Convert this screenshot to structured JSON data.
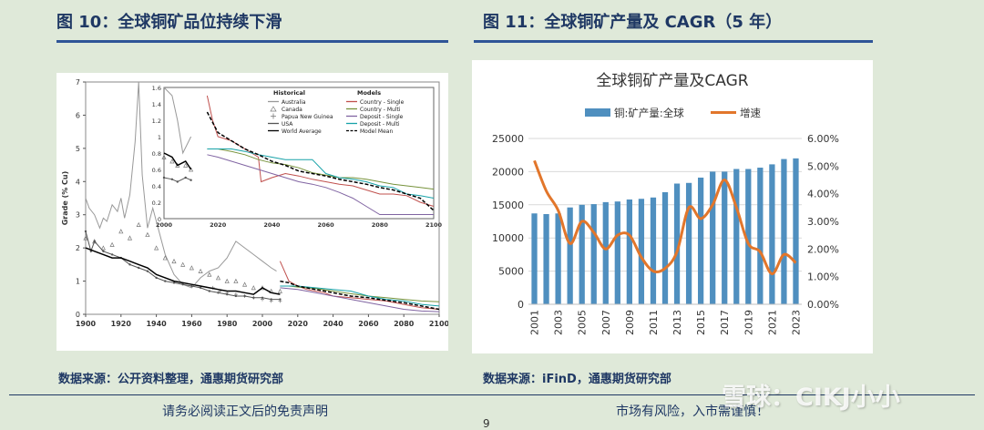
{
  "left": {
    "figure_title": "图 10：全球铜矿品位持续下滑",
    "source": "数据来源：公开资料整理，通惠期货研究部"
  },
  "right": {
    "figure_title": "图 11：全球铜矿产量及 CAGR（5 年）",
    "source": "数据来源：iFinD，通惠期货研究部"
  },
  "footer": {
    "disclaimer": "请务必阅读正文后的免责声明",
    "risk": "市场有风险，入市需谨慎！",
    "page_number": "9",
    "watermark": "雪球：CIKJ小小"
  },
  "chart_data": [
    {
      "type": "line",
      "title": "",
      "xlabel": "",
      "ylabel": "Grade (% Cu)",
      "xlim": [
        1900,
        2100
      ],
      "ylim": [
        0,
        7
      ],
      "x_ticks": [
        "1900",
        "1920",
        "1940",
        "1960",
        "1980",
        "2000",
        "2020",
        "2040",
        "2060",
        "2080",
        "2100"
      ],
      "y_ticks": [
        "0",
        "1",
        "2",
        "3",
        "4",
        "5",
        "6",
        "7"
      ],
      "legend": {
        "historical_title": "Historical",
        "models_title": "Models",
        "items": [
          {
            "name": "Australia",
            "style": "line",
            "color": "#999999"
          },
          {
            "name": "Canada",
            "style": "triangle",
            "color": "#777777"
          },
          {
            "name": "Papua New Guinea",
            "style": "plus",
            "color": "#777777"
          },
          {
            "name": "USA",
            "style": "line-dot",
            "color": "#555555"
          },
          {
            "name": "World Average",
            "style": "line",
            "color": "#000000"
          },
          {
            "name": "Country - Single",
            "style": "line",
            "color": "#c0504d"
          },
          {
            "name": "Country - Multi",
            "style": "line",
            "color": "#77933c"
          },
          {
            "name": "Deposit - Single",
            "style": "line",
            "color": "#8064a2"
          },
          {
            "name": "Deposit - Multi",
            "style": "line",
            "color": "#17a2a8"
          },
          {
            "name": "Model Mean",
            "style": "dashed",
            "color": "#000000"
          }
        ]
      },
      "series": [
        {
          "name": "Australia",
          "x": [
            1900,
            1902,
            1905,
            1908,
            1910,
            1912,
            1915,
            1918,
            1920,
            1922,
            1925,
            1928,
            1930,
            1932,
            1935,
            1938,
            1940,
            1945,
            1950,
            1955,
            1960,
            1965,
            1970,
            1975,
            1980,
            1985,
            1990,
            1995,
            2000,
            2005,
            2008
          ],
          "y": [
            3.5,
            3.2,
            3.0,
            2.6,
            2.9,
            2.8,
            3.3,
            3.1,
            3.5,
            2.9,
            3.6,
            5.2,
            7.0,
            4.2,
            2.6,
            3.2,
            2.8,
            1.8,
            1.2,
            0.9,
            0.8,
            1.1,
            1.3,
            1.4,
            1.7,
            2.2,
            2.0,
            1.8,
            1.6,
            1.4,
            1.3
          ]
        },
        {
          "name": "Canada",
          "x": [
            1900,
            1905,
            1910,
            1915,
            1920,
            1925,
            1930,
            1935,
            1940,
            1945,
            1950,
            1955,
            1960,
            1965,
            1970,
            1975,
            1980,
            1985,
            1990,
            1995,
            2000,
            2005,
            2010
          ],
          "y": [
            2.3,
            2.2,
            2.0,
            2.1,
            2.5,
            2.3,
            2.7,
            2.4,
            2.0,
            1.7,
            1.6,
            1.5,
            1.4,
            1.3,
            1.2,
            1.1,
            1.0,
            1.0,
            0.9,
            0.8,
            0.8,
            0.7,
            0.7
          ]
        },
        {
          "name": "Papua New Guinea",
          "x": [
            1972,
            1976,
            1980,
            1985,
            1990,
            1995,
            2000,
            2005,
            2010
          ],
          "y": [
            0.8,
            0.7,
            0.65,
            0.6,
            0.55,
            0.5,
            0.45,
            0.4,
            0.4
          ]
        },
        {
          "name": "USA",
          "x": [
            1900,
            1903,
            1905,
            1910,
            1915,
            1920,
            1925,
            1930,
            1935,
            1940,
            1945,
            1950,
            1955,
            1960,
            1965,
            1970,
            1975,
            1980,
            1985,
            1990,
            1995,
            2000,
            2005,
            2010
          ],
          "y": [
            2.5,
            1.9,
            2.2,
            1.9,
            1.8,
            1.7,
            1.5,
            1.4,
            1.3,
            1.1,
            1.0,
            0.95,
            0.9,
            0.85,
            0.8,
            0.7,
            0.65,
            0.6,
            0.55,
            0.55,
            0.5,
            0.5,
            0.45,
            0.45
          ]
        },
        {
          "name": "World Average",
          "x": [
            1900,
            1905,
            1910,
            1915,
            1920,
            1925,
            1930,
            1935,
            1940,
            1945,
            1950,
            1955,
            1960,
            1965,
            1970,
            1975,
            1980,
            1985,
            1990,
            1995,
            2000,
            2005,
            2010
          ],
          "y": [
            2.0,
            1.9,
            1.8,
            1.7,
            1.7,
            1.6,
            1.5,
            1.4,
            1.2,
            1.1,
            1.0,
            0.95,
            0.9,
            0.85,
            0.8,
            0.75,
            0.7,
            0.7,
            0.65,
            0.6,
            0.8,
            0.65,
            0.6
          ]
        },
        {
          "name": "Country - Single",
          "x": [
            2010,
            2015,
            2020,
            2025,
            2030,
            2035,
            2040,
            2050,
            2060,
            2070,
            2080,
            2090,
            2100
          ],
          "y": [
            1.6,
            1.0,
            0.85,
            0.75,
            0.7,
            0.65,
            0.55,
            0.5,
            0.45,
            0.4,
            0.3,
            0.2,
            0.15
          ]
        },
        {
          "name": "Country - Multi",
          "x": [
            2010,
            2015,
            2020,
            2030,
            2040,
            2050,
            2060,
            2070,
            2080,
            2090,
            2100
          ],
          "y": [
            0.85,
            0.85,
            0.82,
            0.78,
            0.7,
            0.62,
            0.55,
            0.5,
            0.45,
            0.4,
            0.38
          ]
        },
        {
          "name": "Deposit - Single",
          "x": [
            2010,
            2020,
            2030,
            2040,
            2050,
            2060,
            2070,
            2080,
            2090,
            2100
          ],
          "y": [
            0.8,
            0.75,
            0.65,
            0.55,
            0.45,
            0.35,
            0.25,
            0.15,
            0.1,
            0.08
          ]
        },
        {
          "name": "Deposit - Multi",
          "x": [
            2010,
            2020,
            2030,
            2040,
            2050,
            2060,
            2070,
            2080,
            2090,
            2100
          ],
          "y": [
            0.85,
            0.85,
            0.8,
            0.75,
            0.7,
            0.55,
            0.45,
            0.4,
            0.3,
            0.25
          ]
        },
        {
          "name": "Model Mean",
          "x": [
            2010,
            2015,
            2020,
            2030,
            2040,
            2050,
            2060,
            2070,
            2080,
            2090,
            2100
          ],
          "y": [
            1.0,
            0.95,
            0.85,
            0.75,
            0.65,
            0.55,
            0.5,
            0.42,
            0.35,
            0.25,
            0.15
          ]
        }
      ],
      "inset": {
        "xlim": [
          2000,
          2100
        ],
        "ylim": [
          0,
          1.6
        ],
        "x_ticks": [
          "2000",
          "2020",
          "2040",
          "2060",
          "2080",
          "2100"
        ],
        "y_ticks": [
          "0",
          "0.2",
          "0.4",
          "0.6",
          "0.8",
          "1",
          "1.2",
          "1.4",
          "1.6"
        ],
        "series": [
          {
            "name": "Country - Single",
            "x": [
              2016,
              2018,
              2020,
              2025,
              2030,
              2035,
              2036,
              2040,
              2045,
              2050,
              2055,
              2060,
              2065,
              2070,
              2075,
              2080,
              2085,
              2090,
              2095,
              2100
            ],
            "y": [
              1.5,
              1.2,
              1.0,
              0.95,
              0.85,
              0.75,
              0.45,
              0.5,
              0.55,
              0.52,
              0.48,
              0.45,
              0.42,
              0.4,
              0.35,
              0.3,
              0.3,
              0.28,
              0.2,
              0.15
            ]
          },
          {
            "name": "Country - Multi",
            "x": [
              2016,
              2020,
              2025,
              2030,
              2035,
              2040,
              2045,
              2050,
              2055,
              2060,
              2065,
              2070,
              2075,
              2080,
              2085,
              2090,
              2095,
              2100
            ],
            "y": [
              0.85,
              0.85,
              0.82,
              0.78,
              0.72,
              0.68,
              0.66,
              0.62,
              0.56,
              0.53,
              0.5,
              0.5,
              0.48,
              0.45,
              0.42,
              0.4,
              0.38,
              0.36
            ]
          },
          {
            "name": "Deposit - Single",
            "x": [
              2016,
              2020,
              2025,
              2030,
              2035,
              2040,
              2045,
              2050,
              2055,
              2060,
              2065,
              2070,
              2075,
              2080,
              2085,
              2090,
              2095,
              2100
            ],
            "y": [
              0.78,
              0.75,
              0.7,
              0.65,
              0.6,
              0.55,
              0.5,
              0.45,
              0.42,
              0.38,
              0.32,
              0.25,
              0.15,
              0.05,
              0.05,
              0.05,
              0.05,
              0.05
            ]
          },
          {
            "name": "Deposit - Multi",
            "x": [
              2016,
              2020,
              2025,
              2030,
              2035,
              2040,
              2045,
              2050,
              2055,
              2060,
              2065,
              2070,
              2075,
              2080,
              2085,
              2090,
              2095,
              2100
            ],
            "y": [
              0.85,
              0.85,
              0.85,
              0.82,
              0.78,
              0.75,
              0.72,
              0.72,
              0.72,
              0.55,
              0.5,
              0.48,
              0.45,
              0.4,
              0.38,
              0.3,
              0.28,
              0.25
            ]
          },
          {
            "name": "Model Mean",
            "x": [
              2016,
              2020,
              2025,
              2030,
              2035,
              2040,
              2045,
              2050,
              2055,
              2060,
              2065,
              2070,
              2075,
              2080,
              2085,
              2090,
              2095,
              2100
            ],
            "y": [
              1.3,
              1.05,
              0.95,
              0.85,
              0.78,
              0.7,
              0.65,
              0.58,
              0.55,
              0.52,
              0.48,
              0.45,
              0.42,
              0.38,
              0.35,
              0.3,
              0.25,
              0.1
            ]
          },
          {
            "name": "Australia",
            "x": [
              2000,
              2003,
              2005,
              2007,
              2010
            ],
            "y": [
              1.6,
              1.5,
              1.2,
              0.8,
              1.0
            ]
          },
          {
            "name": "Canada",
            "x": [
              2000,
              2003,
              2005,
              2008,
              2010
            ],
            "y": [
              0.75,
              0.7,
              0.65,
              0.65,
              0.6
            ]
          },
          {
            "name": "World Average",
            "x": [
              2000,
              2003,
              2005,
              2008,
              2010
            ],
            "y": [
              0.8,
              0.75,
              0.65,
              0.7,
              0.6
            ]
          },
          {
            "name": "USA",
            "x": [
              2000,
              2003,
              2005,
              2008,
              2010
            ],
            "y": [
              0.5,
              0.48,
              0.45,
              0.5,
              0.47
            ]
          }
        ]
      }
    },
    {
      "type": "bar",
      "title": "全球铜矿产量及CAGR",
      "legend_position": "top",
      "categories": [
        "2001",
        "2002",
        "2003",
        "2004",
        "2005",
        "2006",
        "2007",
        "2008",
        "2009",
        "2010",
        "2011",
        "2012",
        "2013",
        "2014",
        "2015",
        "2016",
        "2017",
        "2018",
        "2019",
        "2020",
        "2021",
        "2022",
        "2023"
      ],
      "x_tick_labels": [
        "2001",
        "2003",
        "2005",
        "2007",
        "2009",
        "2011",
        "2013",
        "2015",
        "2017",
        "2019",
        "2021",
        "2023"
      ],
      "y_left_ticks": [
        "0",
        "5000",
        "10000",
        "15000",
        "20000",
        "25000"
      ],
      "y_right_ticks": [
        "0.00%",
        "1.00%",
        "2.00%",
        "3.00%",
        "4.00%",
        "5.00%",
        "6.00%"
      ],
      "ylim_left": [
        0,
        25000
      ],
      "ylim_right": [
        0,
        6
      ],
      "series": [
        {
          "name": "铜:矿产量:全球",
          "axis": "left",
          "type": "bar",
          "color": "#4f8fbf",
          "values": [
            13700,
            13600,
            13700,
            14600,
            15000,
            15100,
            15400,
            15500,
            15800,
            15900,
            16100,
            16900,
            18200,
            18300,
            19100,
            20000,
            20000,
            20400,
            20400,
            20600,
            21100,
            21900,
            22000
          ]
        },
        {
          "name": "增速",
          "axis": "right",
          "type": "line",
          "color": "#e2762b",
          "values": [
            5.2,
            4.1,
            3.4,
            2.2,
            3.0,
            2.6,
            2.0,
            2.5,
            2.5,
            1.7,
            1.2,
            1.3,
            1.9,
            3.5,
            3.1,
            3.6,
            4.5,
            3.5,
            2.2,
            1.9,
            1.1,
            1.8,
            1.5
          ]
        }
      ]
    }
  ]
}
